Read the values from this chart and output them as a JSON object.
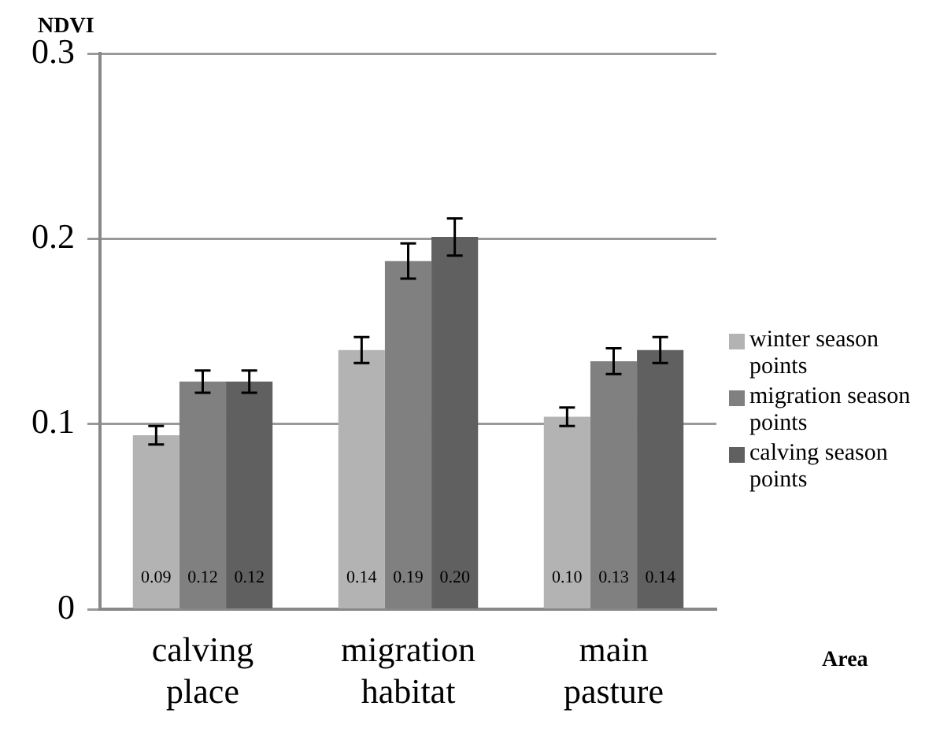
{
  "chart_data": {
    "type": "bar",
    "ylabel": "NDVI",
    "xlabel": "Area",
    "categories": [
      "calving place",
      "migration habitat",
      "main pasture"
    ],
    "series": [
      {
        "name": "winter season points",
        "color": "#b3b3b3",
        "values": [
          0.094,
          0.14,
          0.104
        ],
        "errors": [
          0.005,
          0.007,
          0.005
        ],
        "value_labels": [
          "0.09",
          "0.14",
          "0.10"
        ]
      },
      {
        "name": "migration season points",
        "color": "#808080",
        "values": [
          0.123,
          0.188,
          0.134
        ],
        "errors": [
          0.006,
          0.0095,
          0.007
        ],
        "value_labels": [
          "0.12",
          "0.19",
          "0.13"
        ]
      },
      {
        "name": "calving season points",
        "color": "#606060",
        "values": [
          0.123,
          0.201,
          0.14
        ],
        "errors": [
          0.006,
          0.01,
          0.007
        ],
        "value_labels": [
          "0.12",
          "0.20",
          "0.14"
        ]
      }
    ],
    "ylim": [
      0,
      0.3
    ],
    "yticks": [
      0,
      0.1,
      0.2,
      0.3
    ],
    "grid": "y",
    "legend": "right"
  }
}
